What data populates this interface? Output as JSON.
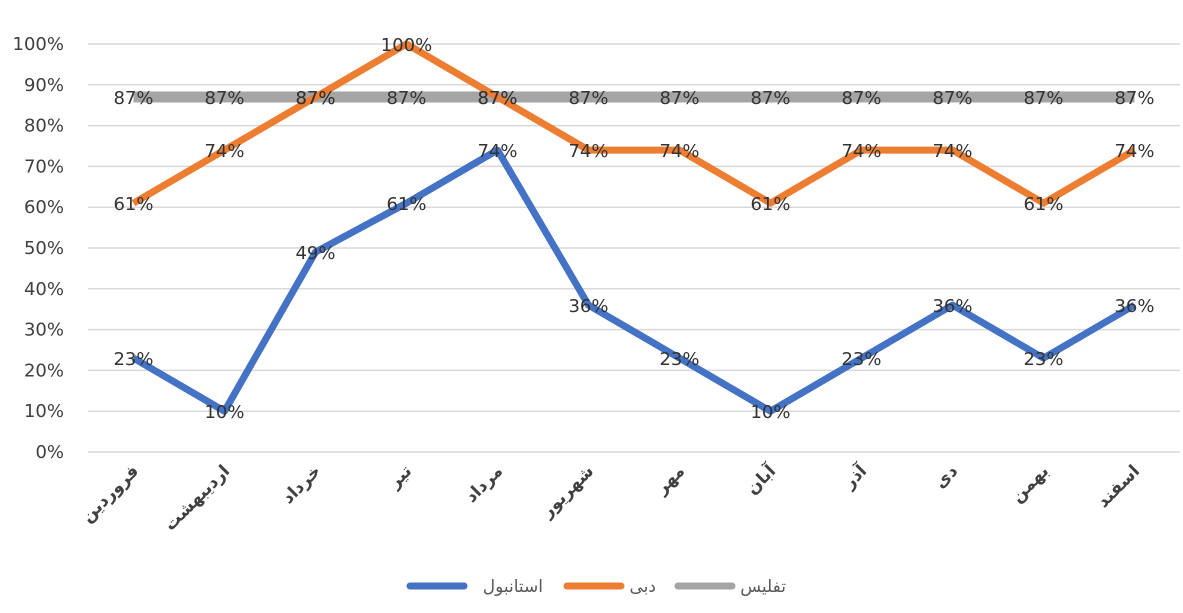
{
  "chart_data": {
    "type": "line",
    "categories": [
      "فروردین",
      "اردیبهشت",
      "خرداد",
      "تیر",
      "مرداد",
      "شهریور",
      "مهر",
      "آبان",
      "آذر",
      "دی",
      "بهمن",
      "اسفند"
    ],
    "y_ticks": [
      "0%",
      "10%",
      "20%",
      "30%",
      "40%",
      "50%",
      "60%",
      "70%",
      "80%",
      "90%",
      "100%"
    ],
    "ylim": [
      0,
      100
    ],
    "grid": true,
    "legend_position": "bottom",
    "series": [
      {
        "name": "استانبول",
        "color": "#4472c4",
        "values": [
          23,
          10,
          49,
          61,
          74,
          36,
          23,
          10,
          23,
          36,
          23,
          36
        ],
        "labels": [
          "23%",
          "10%",
          "49%",
          "61%",
          "74%",
          "36%",
          "23%",
          "10%",
          "23%",
          "36%",
          "23%",
          "36%"
        ]
      },
      {
        "name": "دبی",
        "color": "#ed7d31",
        "values": [
          61,
          74,
          87,
          100,
          87,
          74,
          74,
          61,
          74,
          74,
          61,
          74
        ],
        "labels": [
          "61%",
          "74%",
          "87%",
          "100%",
          "87%",
          "74%",
          "74%",
          "61%",
          "74%",
          "74%",
          "61%",
          "74%"
        ]
      },
      {
        "name": "تفلیس",
        "color": "#a5a5a5",
        "values": [
          87,
          87,
          87,
          87,
          87,
          87,
          87,
          87,
          87,
          87,
          87,
          87
        ],
        "labels": [
          "87%",
          "87%",
          "87%",
          "87%",
          "87%",
          "87%",
          "87%",
          "87%",
          "87%",
          "87%",
          "87%",
          "87%"
        ]
      }
    ]
  }
}
